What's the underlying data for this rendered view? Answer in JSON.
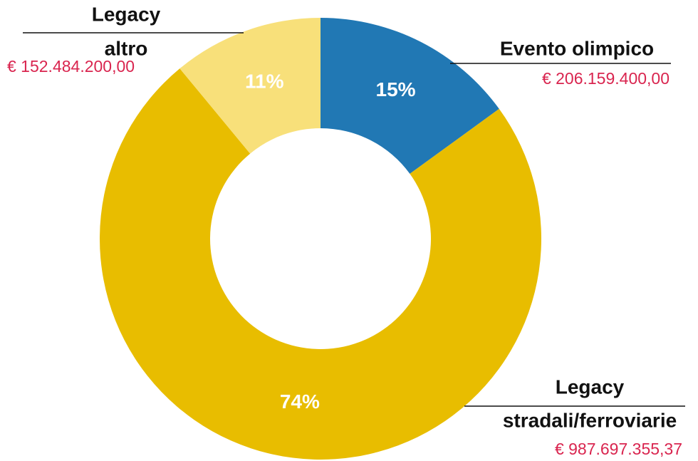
{
  "chart_data": {
    "type": "donut",
    "categories": [
      [
        "Evento olimpico"
      ],
      [
        "Legacy",
        "stradali/ferroviarie"
      ],
      [
        "Legacy",
        "altro"
      ]
    ],
    "values": [
      15,
      74,
      11
    ],
    "value_labels": [
      "15%",
      "74%",
      "11%"
    ],
    "amount_labels": [
      "€ 206.159.400,00",
      "€ 987.697.355,37",
      "€ 152.484.200,00"
    ],
    "colors": [
      "#2178b4",
      "#e8bd00",
      "#f8e07a"
    ]
  }
}
